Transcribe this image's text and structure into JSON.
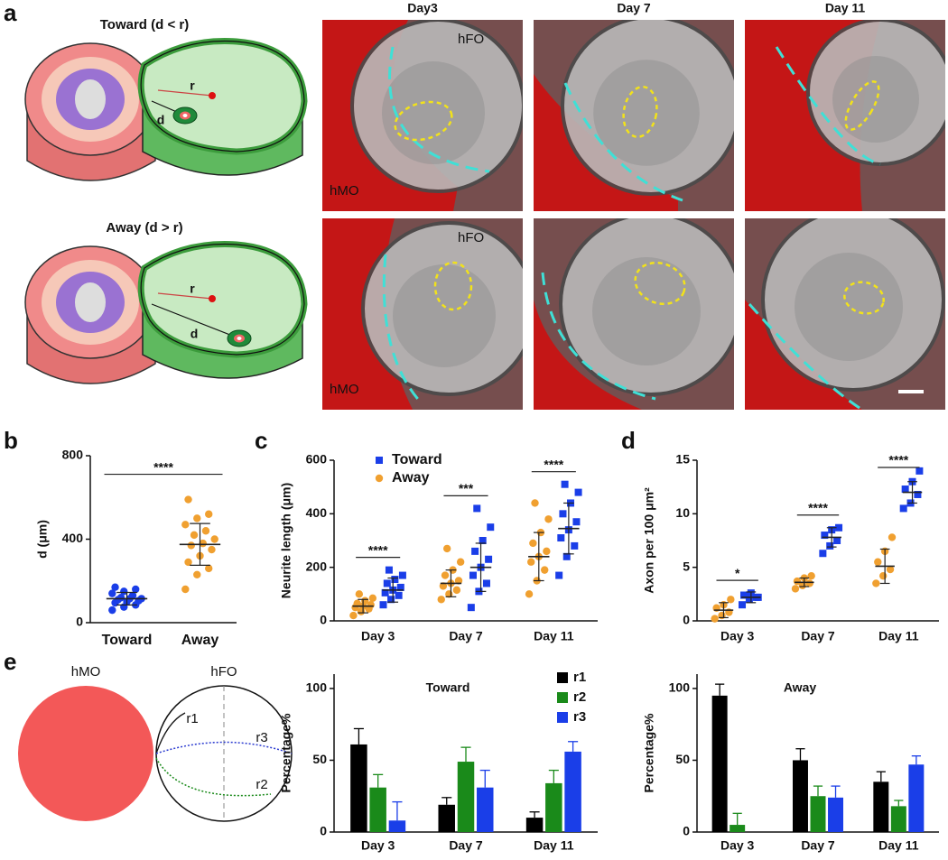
{
  "panel_a": {
    "panel": "a",
    "columns": [
      "Day3",
      "Day 7",
      "Day 11"
    ],
    "rows": [
      {
        "title": "Toward (d < r)",
        "color": "#2a2ad0"
      },
      {
        "title": "Away (d > r)",
        "color": "#e8884a"
      }
    ],
    "organoid_labels": {
      "fo": "hFO",
      "mo": "hMO"
    },
    "symbols": {
      "r": "r",
      "d": "d"
    }
  },
  "panel_e": {
    "panel": "e",
    "left": "hMO",
    "right": "hFO",
    "curves": [
      "r1",
      "r2",
      "r3"
    ]
  },
  "chart_data": [
    {
      "type": "strip",
      "panel": "b",
      "y_label": "d (μm)",
      "ylim": [
        0,
        800
      ],
      "yticks": [
        0,
        400,
        800
      ],
      "series": [
        {
          "name": "Toward",
          "color": "#1a3ee8",
          "marker": "circle",
          "values": [
            60,
            75,
            85,
            95,
            100,
            105,
            110,
            115,
            115,
            120,
            130,
            140,
            150,
            160,
            170
          ],
          "mean": 115,
          "sd": 30
        },
        {
          "name": "Away",
          "color": "#f0a030",
          "marker": "circle",
          "values": [
            160,
            230,
            260,
            290,
            320,
            350,
            370,
            380,
            400,
            420,
            440,
            470,
            500,
            520,
            590
          ],
          "mean": 375,
          "sd": 100
        }
      ],
      "annotations": [
        "****"
      ]
    },
    {
      "type": "strip",
      "panel": "c",
      "y_label": "Neurite length (μm)",
      "ylim": [
        0,
        600
      ],
      "yticks": [
        0,
        200,
        400,
        600
      ],
      "categories": [
        "Day 3",
        "Day 7",
        "Day 11"
      ],
      "legend": "top-left",
      "series": [
        {
          "name": "Away",
          "color": "#f0a030",
          "marker": "circle",
          "values": [
            [
              20,
              35,
              45,
              50,
              55,
              60,
              65,
              75,
              85,
              100
            ],
            [
              80,
              100,
              115,
              130,
              140,
              150,
              170,
              190,
              220,
              270
            ],
            [
              100,
              150,
              190,
              220,
              240,
              260,
              290,
              330,
              380,
              440
            ]
          ],
          "means": [
            55,
            140,
            240
          ],
          "sds": [
            25,
            50,
            90
          ]
        },
        {
          "name": "Toward",
          "color": "#1a3ee8",
          "marker": "square",
          "values": [
            [
              60,
              80,
              95,
              105,
              115,
              125,
              140,
              155,
              170,
              190
            ],
            [
              50,
              110,
              140,
              170,
              200,
              230,
              260,
              300,
              350,
              420
            ],
            [
              170,
              240,
              280,
              310,
              340,
              370,
              400,
              440,
              480,
              510
            ]
          ],
          "means": [
            115,
            200,
            345
          ],
          "sds": [
            45,
            90,
            95
          ]
        }
      ],
      "annotations": [
        "****",
        "***",
        "****"
      ]
    },
    {
      "type": "strip",
      "panel": "d",
      "y_label": "Axon per 100 μm²",
      "ylim": [
        0,
        15
      ],
      "yticks": [
        0,
        5,
        10,
        15
      ],
      "categories": [
        "Day 3",
        "Day 7",
        "Day 11"
      ],
      "series": [
        {
          "name": "Away",
          "color": "#f0a030",
          "marker": "circle",
          "values": [
            [
              0.2,
              0.5,
              0.8,
              1.2,
              1.5,
              2.0
            ],
            [
              3.0,
              3.3,
              3.5,
              3.7,
              4.0,
              4.2
            ],
            [
              3.5,
              4.2,
              4.8,
              5.5,
              6.5,
              7.8
            ]
          ],
          "means": [
            1.0,
            3.6,
            5.1
          ],
          "sds": [
            0.7,
            0.4,
            1.6
          ]
        },
        {
          "name": "Toward",
          "color": "#1a3ee8",
          "marker": "square",
          "values": [
            [
              1.5,
              2.0,
              2.2,
              2.4,
              2.6,
              2.2
            ],
            [
              6.3,
              7.0,
              7.5,
              8.0,
              8.5,
              8.7
            ],
            [
              10.5,
              11.0,
              11.8,
              12.3,
              13.0,
              14.0
            ]
          ],
          "means": [
            2.2,
            7.8,
            12.0
          ],
          "sds": [
            0.5,
            0.9,
            1.0
          ]
        }
      ],
      "annotations": [
        "*",
        "****",
        "****"
      ]
    },
    {
      "type": "bar",
      "title": "Toward",
      "title_color": "#2a2ad0",
      "y_label": "Percentage%",
      "ylim": [
        0,
        110
      ],
      "yticks": [
        0,
        50,
        100
      ],
      "categories": [
        "Day 3",
        "Day 7",
        "Day 11"
      ],
      "legend": "top-right",
      "series": [
        {
          "name": "r1",
          "color": "#000000",
          "values": [
            61,
            19,
            10
          ],
          "errors": [
            11,
            5,
            4
          ]
        },
        {
          "name": "r2",
          "color": "#1a8a1a",
          "values": [
            31,
            49,
            34
          ],
          "errors": [
            9,
            10,
            9
          ]
        },
        {
          "name": "r3",
          "color": "#1a3ee8",
          "values": [
            8,
            31,
            56
          ],
          "errors": [
            13,
            12,
            7
          ]
        }
      ]
    },
    {
      "type": "bar",
      "title": "Away",
      "title_color": "#e8884a",
      "y_label": "Percentage%",
      "ylim": [
        0,
        110
      ],
      "yticks": [
        0,
        50,
        100
      ],
      "categories": [
        "Day 3",
        "Day 7",
        "Day 11"
      ],
      "series": [
        {
          "name": "r1",
          "color": "#000000",
          "values": [
            95,
            50,
            35
          ],
          "errors": [
            8,
            8,
            7
          ]
        },
        {
          "name": "r2",
          "color": "#1a8a1a",
          "values": [
            5,
            25,
            18
          ],
          "errors": [
            8,
            7,
            4
          ]
        },
        {
          "name": "r3",
          "color": "#1a3ee8",
          "values": [
            null,
            24,
            47
          ],
          "errors": [
            null,
            8,
            6
          ]
        }
      ]
    }
  ]
}
